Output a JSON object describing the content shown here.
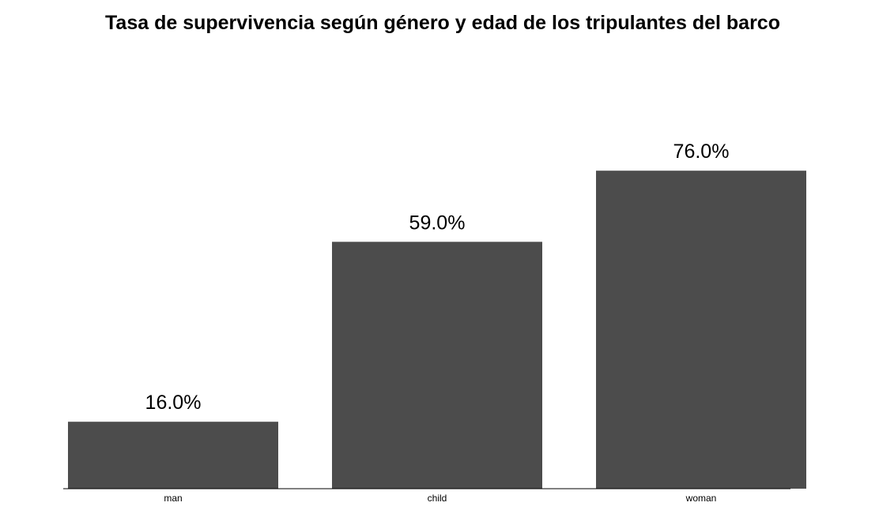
{
  "chart_data": {
    "type": "bar",
    "title": "Tasa de supervivencia según género y edad de los tripulantes del barco",
    "xlabel": "",
    "ylabel": "",
    "categories": [
      "man",
      "child",
      "woman"
    ],
    "values": [
      16.0,
      59.0,
      76.0
    ],
    "data_labels": [
      "16.0%",
      "59.0%",
      "76.0%"
    ],
    "ylim": [
      0,
      80
    ],
    "grid": false,
    "legend": "none",
    "bar_color": "#4c4c4c",
    "background_color": "#ffffff"
  }
}
